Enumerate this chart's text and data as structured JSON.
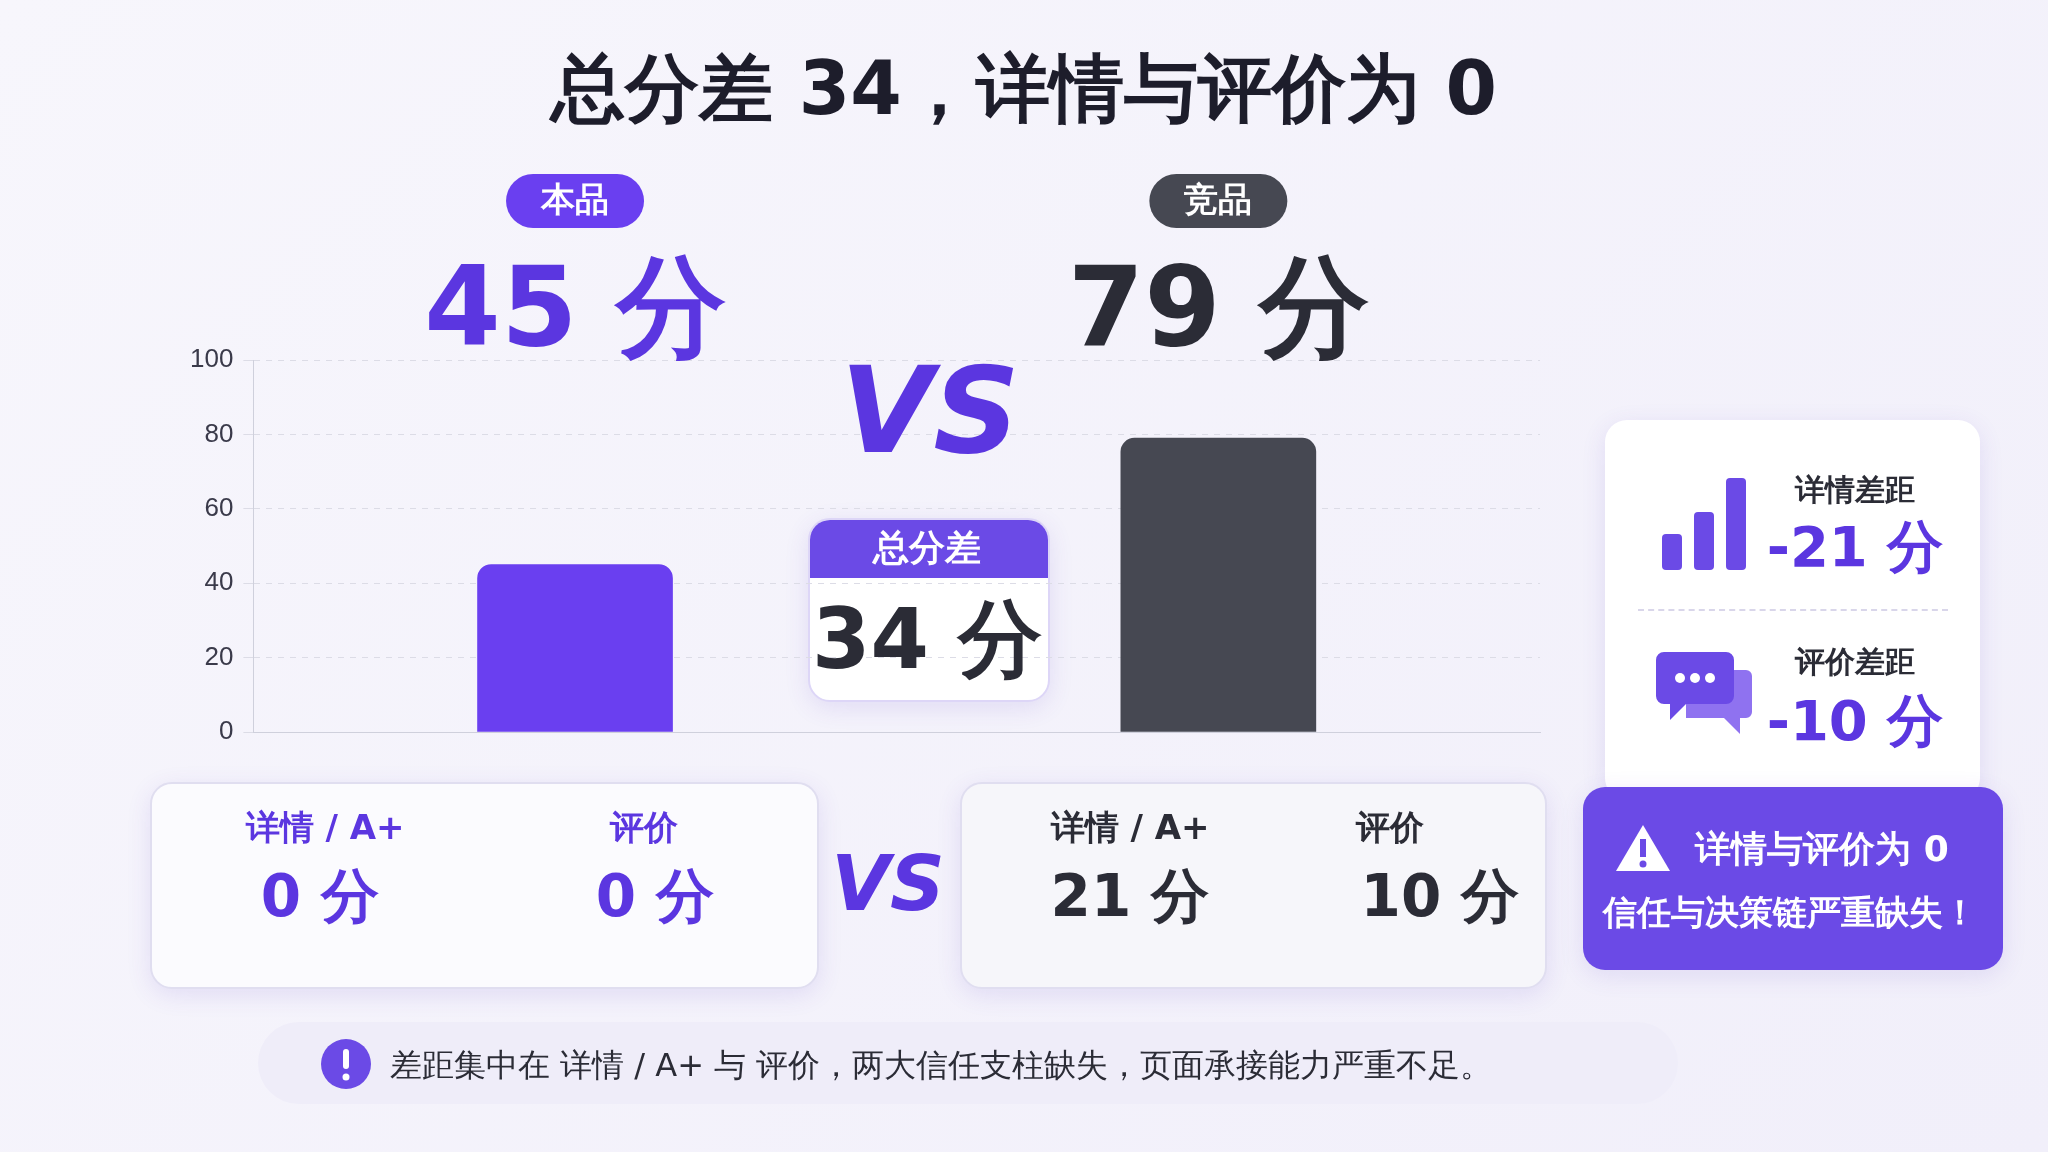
{
  "chart_data": {
    "type": "bar",
    "title": "总分差 34，详情与评价为 0",
    "categories": [
      "本品",
      "竞品"
    ],
    "values": [
      45,
      79
    ],
    "colors": [
      "#6a3ff0",
      "#464852"
    ],
    "value_labels": [
      "45 分",
      "79 分"
    ],
    "ylim": [
      0,
      100
    ],
    "yticks": [
      0,
      20,
      40,
      60,
      80,
      100
    ],
    "grid": "y",
    "annotations": [
      "VS",
      "总分差",
      "34 分",
      "详情 / A+",
      "0 分",
      "评价",
      "0 分",
      "VS",
      "详情 / A+",
      "21 分",
      "评价",
      "10 分",
      "详情差距",
      "-21 分",
      "评价差距",
      "-10 分",
      "详情与评价为 0",
      "信任与决策链严重缺失！",
      "差距集中在 详情 / A+ 与 评价，两大信任支柱缺失，页面承接能力严重不足。"
    ]
  }
}
